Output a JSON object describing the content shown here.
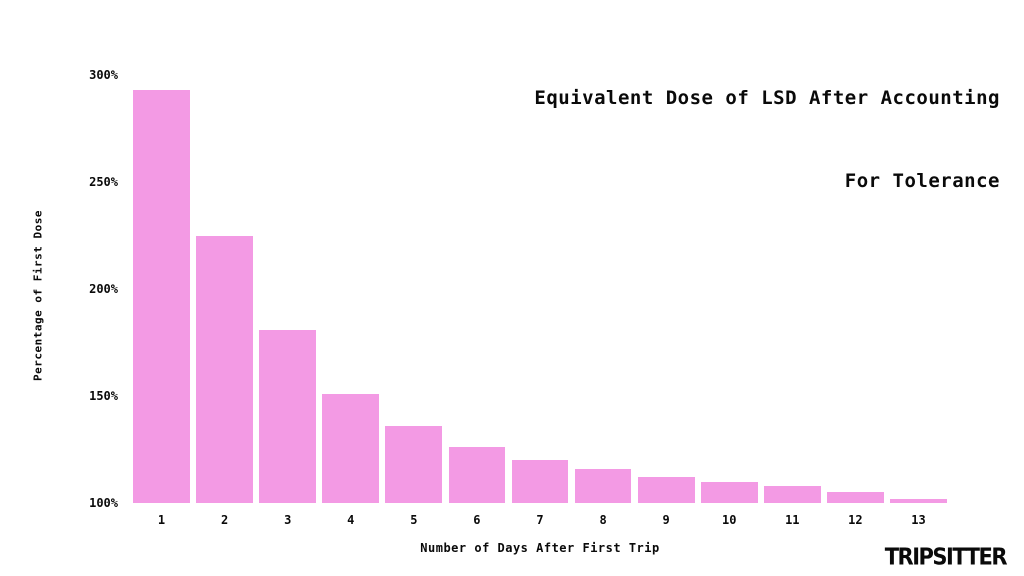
{
  "title": {
    "line1": "Equivalent Dose of LSD After Accounting",
    "line2": "For Tolerance"
  },
  "chart_data": {
    "type": "bar",
    "title": "Equivalent Dose of LSD After Accounting For Tolerance",
    "categories": [
      "1",
      "2",
      "3",
      "4",
      "5",
      "6",
      "7",
      "8",
      "9",
      "10",
      "11",
      "12",
      "13"
    ],
    "values": [
      293,
      225,
      181,
      151,
      136,
      126,
      120,
      116,
      112,
      110,
      108,
      105,
      102
    ],
    "xlabel": "Number of Days After First Trip",
    "ylabel": "Percentage of First Dose",
    "ylim": [
      100,
      300
    ],
    "ytick_values": [
      100,
      150,
      200,
      250,
      300
    ],
    "ytick_labels": [
      "100%",
      "150%",
      "200%",
      "250%",
      "300%"
    ],
    "bar_color": "#f39ae4",
    "grid": false,
    "legend": "none"
  },
  "branding": {
    "logo_text": "TRIPSITTER"
  }
}
